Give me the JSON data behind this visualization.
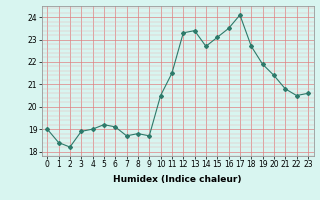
{
  "x": [
    0,
    1,
    2,
    3,
    4,
    5,
    6,
    7,
    8,
    9,
    10,
    11,
    12,
    13,
    14,
    15,
    16,
    17,
    18,
    19,
    20,
    21,
    22,
    23
  ],
  "y": [
    19.0,
    18.4,
    18.2,
    18.9,
    19.0,
    19.2,
    19.1,
    18.7,
    18.8,
    18.7,
    20.5,
    21.5,
    23.3,
    23.4,
    22.7,
    23.1,
    23.5,
    24.1,
    22.7,
    21.9,
    21.4,
    20.8,
    20.5,
    20.6
  ],
  "line_color": "#2d7a6a",
  "marker": "D",
  "marker_size": 2,
  "bg_color": "#d8f5f0",
  "grid_color_major": "#e08080",
  "grid_color_minor": "#e8b0b0",
  "xlabel": "Humidex (Indice chaleur)",
  "xlim": [
    -0.5,
    23.5
  ],
  "ylim": [
    17.8,
    24.5
  ],
  "yticks": [
    18,
    19,
    20,
    21,
    22,
    23,
    24
  ],
  "xticks": [
    0,
    1,
    2,
    3,
    4,
    5,
    6,
    7,
    8,
    9,
    10,
    11,
    12,
    13,
    14,
    15,
    16,
    17,
    18,
    19,
    20,
    21,
    22,
    23
  ],
  "label_fontsize": 6.5,
  "tick_fontsize": 5.5
}
